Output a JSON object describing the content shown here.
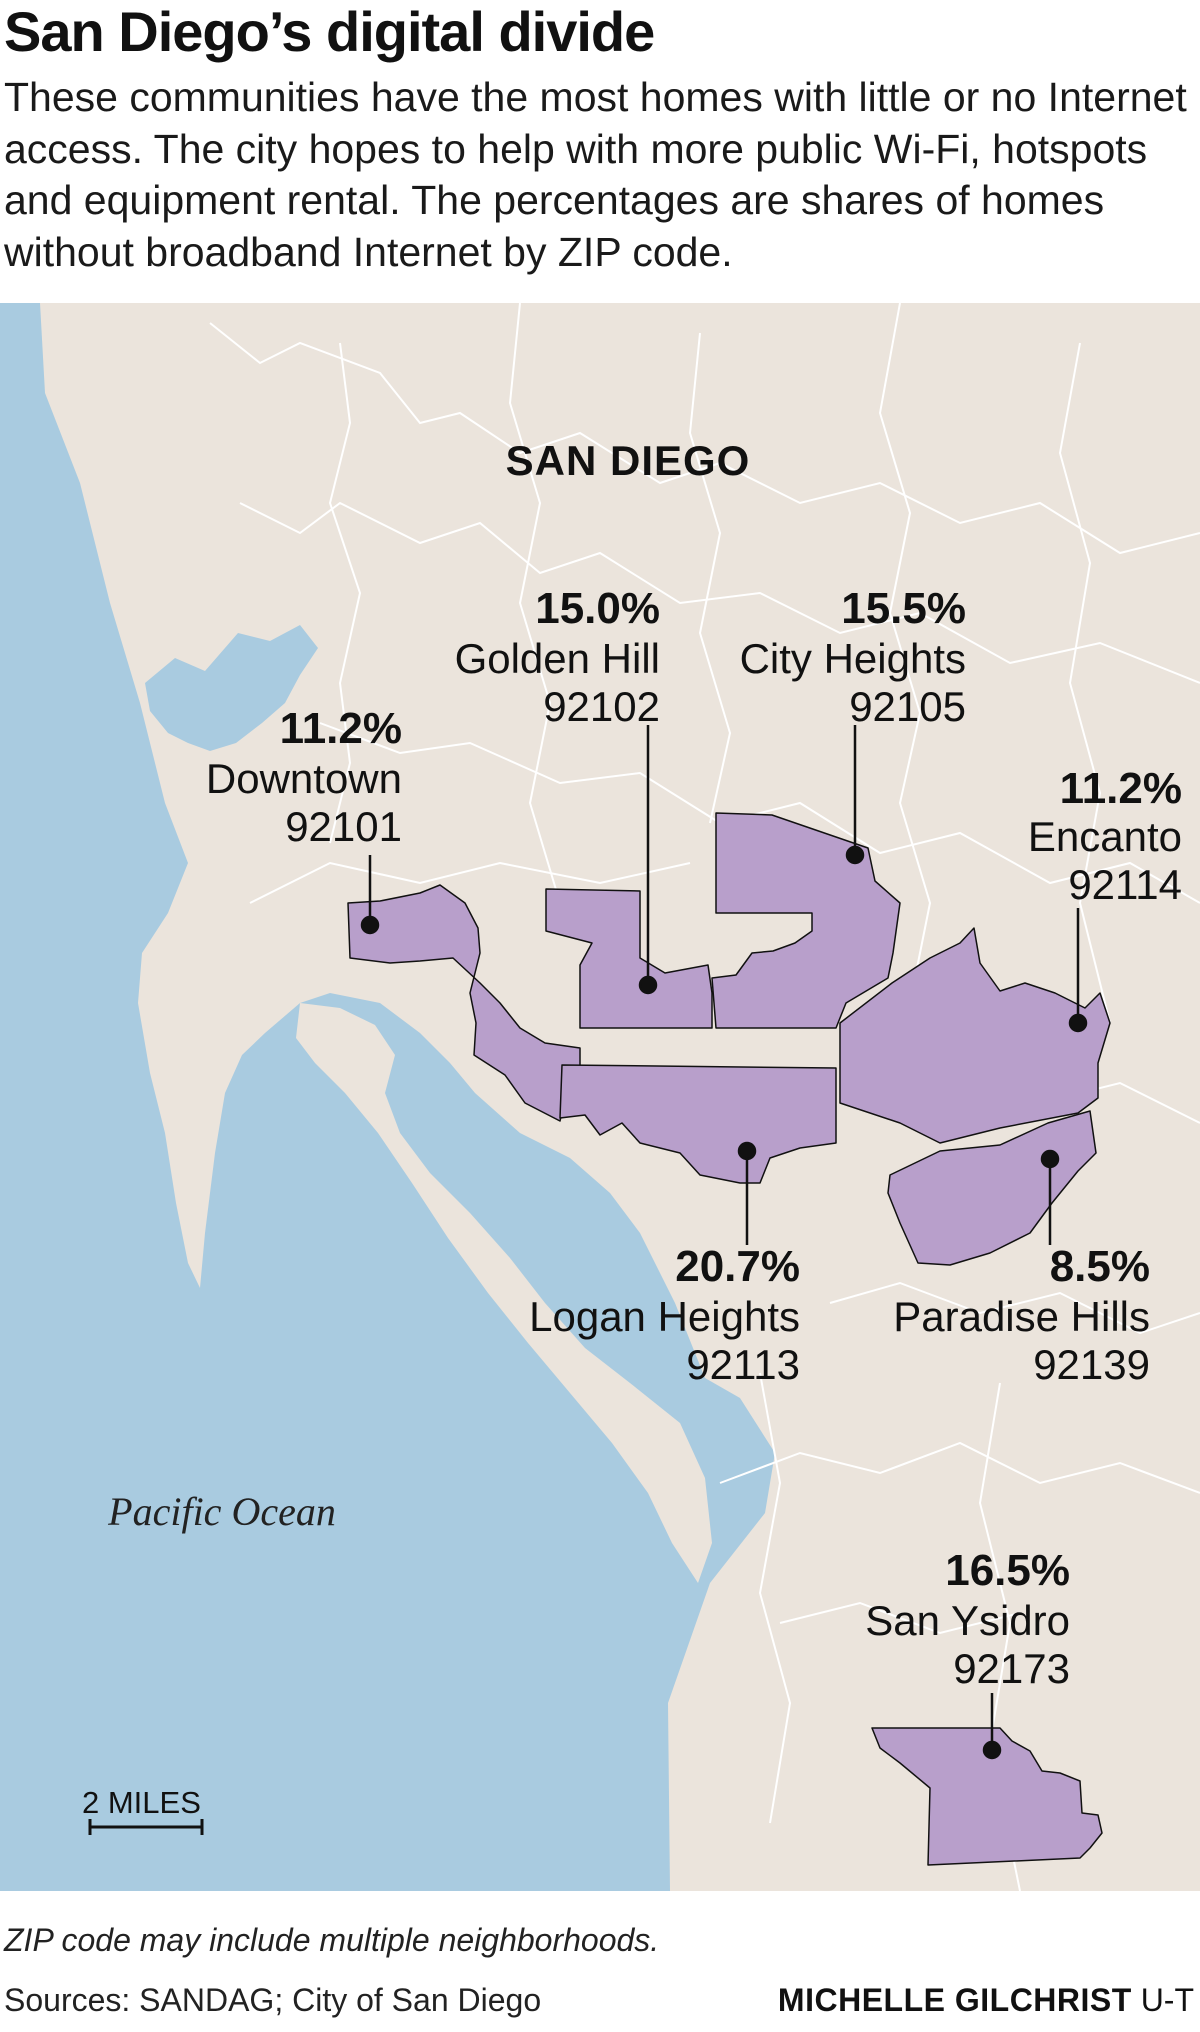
{
  "header": {
    "title": "San Diego’s digital divide",
    "subtitle": "These communities have the most homes with little or no Internet access. The city hopes to help with more public Wi-Fi, hotspots and equipment rental. The percentages are shares of homes without broadband Internet by ZIP code."
  },
  "colors": {
    "water": "#a9cbe0",
    "land": "#ebe4dc",
    "highlight": "#b89fcb",
    "border_line": "#ffffff",
    "outline": "#111111"
  },
  "map": {
    "city_label": "SAN DIEGO",
    "ocean_label": "Pacific Ocean",
    "scale_label": "2 MILES",
    "areas": [
      {
        "pct": "11.2%",
        "name": "Downtown",
        "zip": "92101"
      },
      {
        "pct": "15.0%",
        "name": "Golden Hill",
        "zip": "92102"
      },
      {
        "pct": "15.5%",
        "name": "City Heights",
        "zip": "92105"
      },
      {
        "pct": "11.2%",
        "name": "Encanto",
        "zip": "92114"
      },
      {
        "pct": "20.7%",
        "name": "Logan Heights",
        "zip": "92113"
      },
      {
        "pct": "8.5%",
        "name": "Paradise Hills",
        "zip": "92139"
      },
      {
        "pct": "16.5%",
        "name": "San Ysidro",
        "zip": "92173"
      }
    ]
  },
  "footer": {
    "note": "ZIP code may include multiple neighborhoods.",
    "sources": "Sources: SANDAG; City of San Diego",
    "credit_name": "MICHELLE GILCHRIST",
    "credit_org": "U-T"
  }
}
